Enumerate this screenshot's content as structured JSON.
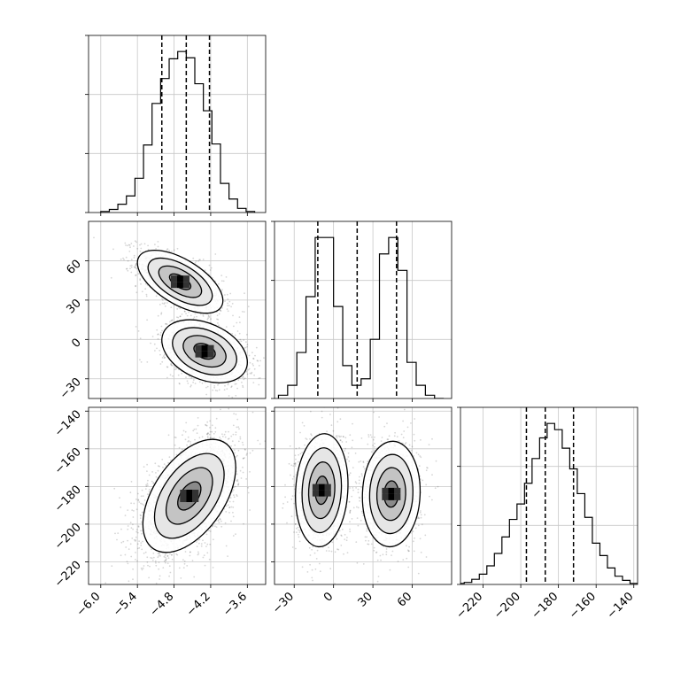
{
  "chart_data": {
    "type": "corner",
    "title": "",
    "grid": true,
    "parameters": [
      {
        "index": 0,
        "range": [
          -6.2,
          -3.3
        ],
        "ticks": [
          -6.0,
          -5.4,
          -4.8,
          -4.2,
          -3.6
        ],
        "tick_labels": [
          "−6.0",
          "−5.4",
          "−4.8",
          "−4.2",
          "−3.6"
        ]
      },
      {
        "index": 1,
        "range": [
          -45,
          90
        ],
        "ticks": [
          -30,
          0,
          30,
          60
        ],
        "tick_labels": [
          "−30",
          "0",
          "30",
          "60"
        ]
      },
      {
        "index": 2,
        "range": [
          -232,
          -138
        ],
        "ticks": [
          -220,
          -200,
          -180,
          -160,
          -140
        ],
        "tick_labels": [
          "−220",
          "−200",
          "−180",
          "−160",
          "−140"
        ]
      }
    ],
    "marginals": [
      {
        "param": 0,
        "quantiles": [
          -5.0,
          -4.6,
          -4.22
        ],
        "hist": {
          "bin_edges": [
            -6.0,
            -5.86,
            -5.72,
            -5.58,
            -5.44,
            -5.3,
            -5.16,
            -5.02,
            -4.88,
            -4.74,
            -4.6,
            -4.46,
            -4.32,
            -4.18,
            -4.04,
            -3.9,
            -3.76,
            -3.62,
            -3.48
          ],
          "counts": [
            1,
            3,
            8,
            16,
            33,
            65,
            105,
            129,
            148,
            155,
            149,
            124,
            98,
            66,
            28,
            13,
            4,
            1
          ]
        }
      },
      {
        "param": 1,
        "quantiles": [
          -12,
          18,
          48
        ],
        "hist": {
          "bin_edges": [
            -42,
            -35,
            -28,
            -21,
            -14,
            -7,
            0,
            7,
            14,
            21,
            28,
            35,
            42,
            49,
            56,
            63,
            70,
            77,
            84
          ],
          "counts": [
            2,
            8,
            28,
            62,
            98,
            98,
            56,
            20,
            8,
            12,
            36,
            88,
            98,
            78,
            22,
            8,
            2,
            0
          ]
        }
      },
      {
        "param": 2,
        "quantiles": [
          -197,
          -187,
          -172
        ],
        "hist": {
          "bin_edges": [
            -234,
            -230,
            -226,
            -222,
            -218,
            -214,
            -210,
            -206,
            -202,
            -198,
            -194,
            -190,
            -186,
            -182,
            -178,
            -174,
            -170,
            -166,
            -162,
            -158,
            -154,
            -150,
            -146,
            -142,
            -138
          ],
          "counts": [
            1,
            2,
            5,
            10,
            18,
            30,
            46,
            63,
            78,
            98,
            122,
            142,
            156,
            150,
            132,
            112,
            88,
            65,
            40,
            28,
            16,
            8,
            4,
            1
          ]
        }
      }
    ],
    "joint": [
      {
        "x_param": 0,
        "y_param": 1,
        "modes": [
          {
            "center": [
              -4.7,
              44
            ],
            "sigma": [
              0.35,
              12
            ],
            "corr": -0.6,
            "weight": 0.5
          },
          {
            "center": [
              -4.3,
              -9
            ],
            "sigma": [
              0.35,
              12
            ],
            "corr": -0.35,
            "weight": 0.5
          }
        ]
      },
      {
        "x_param": 0,
        "y_param": 2,
        "modes": [
          {
            "center": [
              -4.55,
              -185
            ],
            "sigma": [
              0.38,
              15
            ],
            "corr": 0.5,
            "weight": 1.0
          }
        ]
      },
      {
        "x_param": 1,
        "y_param": 2,
        "modes": [
          {
            "center": [
              -9,
              -182
            ],
            "sigma": [
              10,
              15
            ],
            "corr": 0.1,
            "weight": 0.5
          },
          {
            "center": [
              44,
              -184
            ],
            "sigma": [
              11,
              14
            ],
            "corr": 0.05,
            "weight": 0.5
          }
        ]
      }
    ]
  }
}
